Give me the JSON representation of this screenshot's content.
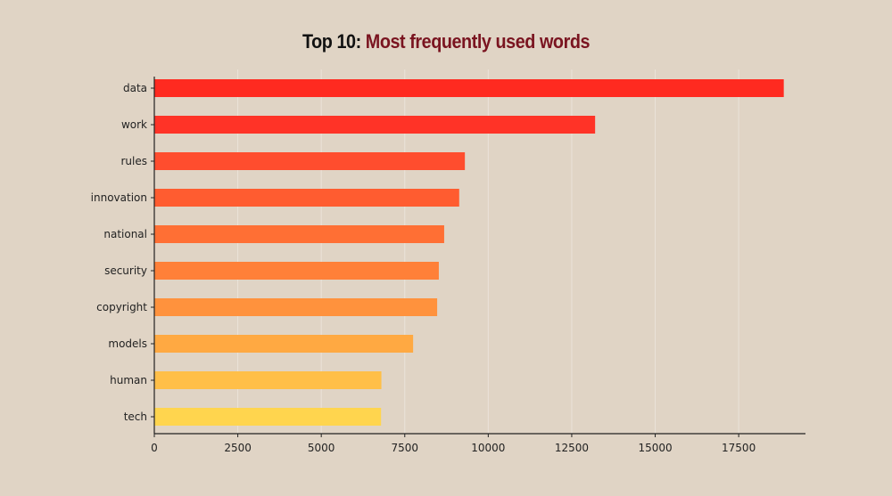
{
  "title": {
    "prefix": "Top 10: ",
    "main": "Most frequently used words"
  },
  "colors": {
    "background": "#e0d4c5",
    "title_prefix": "#111111",
    "title_main": "#7a1420",
    "axis": "#222222"
  },
  "chart_data": {
    "type": "bar",
    "orientation": "horizontal",
    "categories": [
      "data",
      "work",
      "rules",
      "innovation",
      "national",
      "security",
      "copyright",
      "models",
      "human",
      "tech"
    ],
    "values": [
      18850,
      13200,
      9300,
      9130,
      8680,
      8520,
      8470,
      7750,
      6800,
      6790
    ],
    "bar_colors": [
      "#ff2a20",
      "#ff3327",
      "#ff4d2e",
      "#ff5c30",
      "#ff6f34",
      "#ff8038",
      "#ff923d",
      "#ffa942",
      "#ffbf48",
      "#ffd54e"
    ],
    "xticks": [
      0,
      2500,
      5000,
      7500,
      10000,
      12500,
      15000,
      17500
    ],
    "xlim": [
      0,
      19500
    ],
    "xlabel": "",
    "ylabel": "",
    "grid": true,
    "legend": "none"
  }
}
